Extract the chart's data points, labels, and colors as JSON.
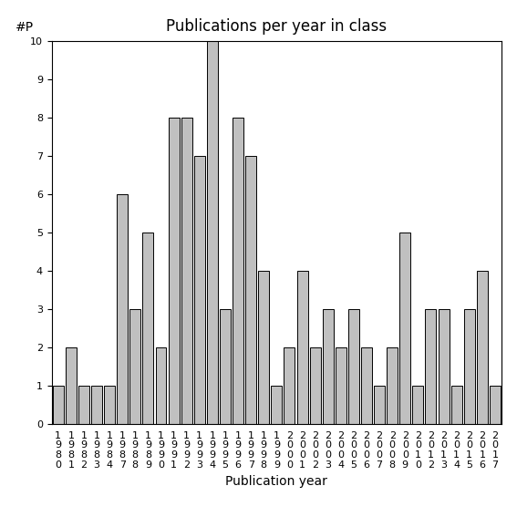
{
  "years": [
    "1980",
    "1981",
    "1982",
    "1983",
    "1984",
    "1987",
    "1988",
    "1989",
    "1990",
    "1991",
    "1992",
    "1993",
    "1994",
    "1995",
    "1996",
    "1997",
    "1998",
    "1999",
    "2000",
    "2001",
    "2002",
    "2003",
    "2004",
    "2005",
    "2006",
    "2007",
    "2008",
    "2009",
    "2010",
    "2012",
    "2013",
    "2014",
    "2015",
    "2016",
    "2017"
  ],
  "values": [
    1,
    2,
    1,
    1,
    1,
    6,
    3,
    5,
    2,
    8,
    8,
    7,
    10,
    3,
    8,
    7,
    4,
    1,
    2,
    4,
    2,
    3,
    2,
    3,
    2,
    1,
    2,
    5,
    1,
    3,
    3,
    1,
    3,
    4,
    1
  ],
  "bar_color": "#c0c0c0",
  "bar_edgecolor": "#000000",
  "bar_linewidth": 0.7,
  "title": "Publications per year in class",
  "xlabel": "Publication year",
  "ylabel": "#P",
  "ylim": [
    0,
    10
  ],
  "yticks": [
    0,
    1,
    2,
    3,
    4,
    5,
    6,
    7,
    8,
    9,
    10
  ],
  "title_fontsize": 12,
  "label_fontsize": 10,
  "tick_fontsize": 8,
  "bg_color": "#ffffff"
}
